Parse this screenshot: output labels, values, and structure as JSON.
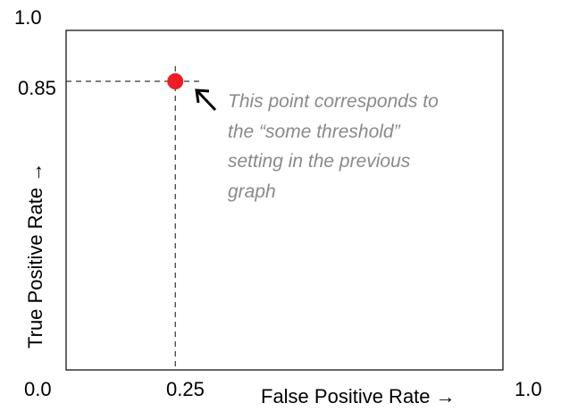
{
  "chart_data": {
    "type": "scatter",
    "xlabel": "False Positive Rate →",
    "ylabel": "True Positive Rate →",
    "xlim": [
      0.0,
      1.0
    ],
    "ylim": [
      0.0,
      1.0
    ],
    "x_ticks": [
      "0.0",
      "0.25",
      "1.0"
    ],
    "y_ticks": [
      "1.0",
      "0.85",
      "0.0"
    ],
    "points": [
      {
        "x": 0.25,
        "y": 0.85,
        "color": "#ee1c25"
      }
    ],
    "reference_lines": [
      {
        "axis": "x",
        "value": 0.25,
        "style": "dashed"
      },
      {
        "axis": "y",
        "value": 0.85,
        "style": "dashed"
      }
    ],
    "annotation": {
      "lines": [
        "This point corresponds to",
        "the “some threshold”",
        "setting in the previous",
        "graph"
      ],
      "color": "#8a8a8a"
    },
    "grid": false
  }
}
